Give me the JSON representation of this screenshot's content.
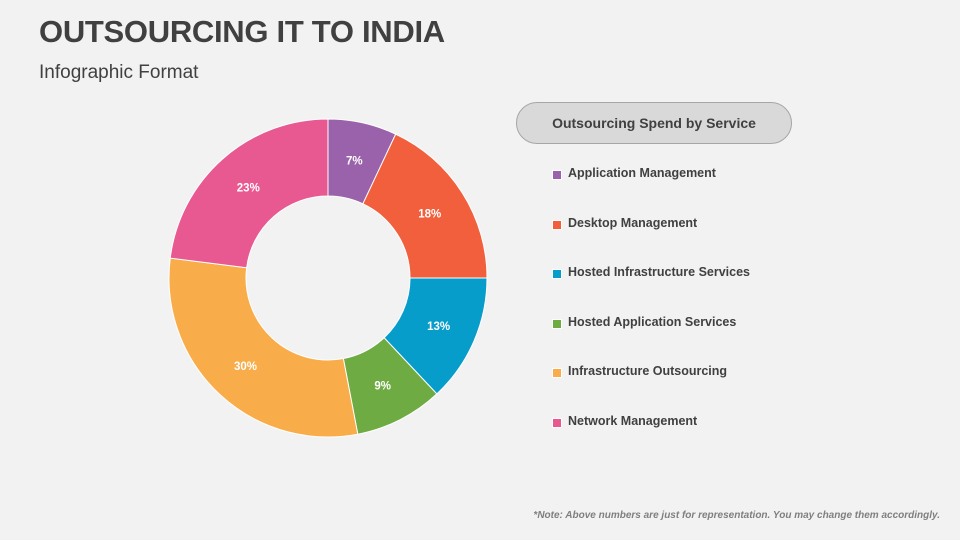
{
  "header": {
    "title": "OUTSOURCING IT TO INDIA",
    "subtitle": "Infographic Format"
  },
  "chart_data": {
    "type": "pie",
    "subtype": "donut",
    "title": "Outsourcing Spend by Service",
    "categories": [
      "Application Management",
      "Desktop Management",
      "Hosted Infrastructure Services",
      "Hosted Application Services",
      "Infrastructure Outsourcing",
      "Network Management"
    ],
    "values": [
      7,
      18,
      13,
      9,
      30,
      23
    ],
    "labels": [
      "7%",
      "18%",
      "13%",
      "9%",
      "30%",
      "23%"
    ],
    "colors": [
      "#9a62aa",
      "#f15f3d",
      "#079dcb",
      "#6eab42",
      "#f9ad4a",
      "#e85891"
    ],
    "unit": "%",
    "legend": "right",
    "start_angle": "12 o'clock",
    "direction": "clockwise"
  },
  "footer": {
    "note": "*Note: Above numbers are just for representation. You may change them accordingly."
  }
}
